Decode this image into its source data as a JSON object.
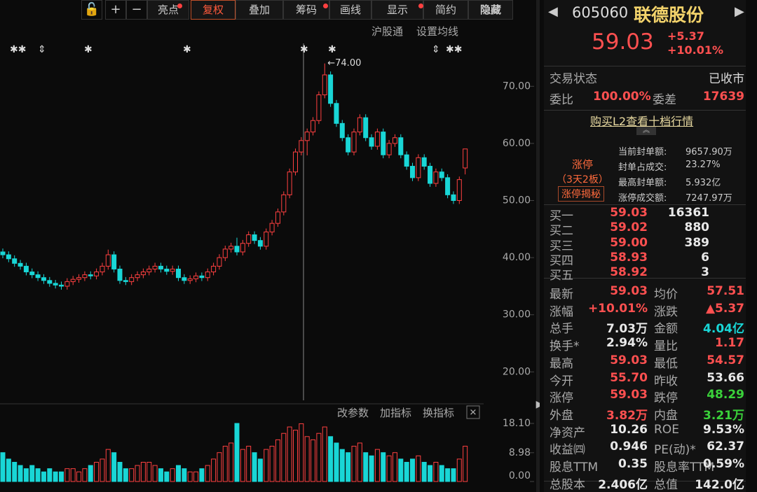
{
  "toolbar": {
    "items": [
      "亮点",
      "复权",
      "叠加",
      "筹码",
      "画线",
      "显示",
      "简约",
      "隐藏"
    ],
    "sub": [
      "沪股通",
      "设置均线"
    ],
    "indicator": [
      "改参数",
      "加指标",
      "换指标"
    ]
  },
  "chart_data": {
    "type": "candlestick",
    "up_color": "#ff4040",
    "down_color": "#19d6d6",
    "peak_label": "←74.00",
    "ylim": [
      16,
      78
    ],
    "yticks": [
      {
        "value": 20,
        "label": "20.00"
      },
      {
        "value": 30,
        "label": "30.00"
      },
      {
        "value": 40,
        "label": "40.00"
      },
      {
        "value": 50,
        "label": "50.00"
      },
      {
        "value": 60,
        "label": "60.00"
      },
      {
        "value": 70,
        "label": "70.00"
      }
    ],
    "ohlc": [
      [
        41,
        41.6,
        39.9,
        40.5
      ],
      [
        40.5,
        41.1,
        39.2,
        39.8
      ],
      [
        39.8,
        40.4,
        38.4,
        39
      ],
      [
        39,
        39.6,
        37.9,
        38.5
      ],
      [
        38.5,
        39.1,
        36.9,
        37.5
      ],
      [
        37.5,
        38.1,
        36.4,
        37
      ],
      [
        37,
        37.6,
        35.9,
        36.5
      ],
      [
        36.5,
        37.1,
        35.4,
        36
      ],
      [
        36,
        36.6,
        34.9,
        35.5
      ],
      [
        35.5,
        36.1,
        34.6,
        35.2
      ],
      [
        35.2,
        35.8,
        34.4,
        35
      ],
      [
        35,
        36.4,
        34.4,
        35.8
      ],
      [
        35.8,
        36.8,
        35.2,
        36.2
      ],
      [
        36.2,
        37.1,
        35.6,
        36.5
      ],
      [
        36.5,
        37.6,
        35.9,
        37
      ],
      [
        37,
        37.6,
        36.2,
        36.8
      ],
      [
        36.8,
        38.1,
        36.2,
        37.5
      ],
      [
        37.5,
        39.1,
        36.9,
        38.5
      ],
      [
        38.5,
        41.4,
        37.9,
        40.5
      ],
      [
        40.5,
        41.1,
        37.4,
        38
      ],
      [
        38,
        38.6,
        35.4,
        36
      ],
      [
        36,
        36.6,
        35.2,
        35.8
      ],
      [
        35.8,
        37.1,
        35.2,
        36.5
      ],
      [
        36.5,
        37.6,
        35.9,
        37
      ],
      [
        37,
        38.1,
        36.4,
        37.5
      ],
      [
        37.5,
        38.6,
        36.9,
        38
      ],
      [
        38,
        39.1,
        37.4,
        38.5
      ],
      [
        38.5,
        39.1,
        37.4,
        38
      ],
      [
        38,
        38.6,
        37,
        37.6
      ],
      [
        37.6,
        38.6,
        37,
        38
      ],
      [
        38,
        38.6,
        35.9,
        36.5
      ],
      [
        36.5,
        37.1,
        35.4,
        36
      ],
      [
        36,
        36.9,
        35.4,
        36.3
      ],
      [
        36.3,
        37.4,
        35.7,
        36.8
      ],
      [
        36.8,
        37.4,
        35.9,
        36.5
      ],
      [
        36.5,
        38.1,
        35.9,
        37.5
      ],
      [
        37.5,
        39.1,
        36.9,
        38.5
      ],
      [
        38.5,
        40.6,
        37.9,
        40
      ],
      [
        40,
        42.1,
        39.4,
        41.5
      ],
      [
        41.5,
        42.6,
        40.9,
        42
      ],
      [
        42,
        43.5,
        40.4,
        41
      ],
      [
        41,
        43.1,
        40.4,
        42.5
      ],
      [
        42.5,
        44.6,
        41.9,
        44
      ],
      [
        44,
        44.6,
        42.4,
        43
      ],
      [
        43,
        43.6,
        41.4,
        42
      ],
      [
        42,
        45.1,
        41.4,
        44.5
      ],
      [
        44.5,
        46.6,
        43.9,
        46
      ],
      [
        46,
        48.6,
        45.4,
        48
      ],
      [
        48,
        51.6,
        47.4,
        51
      ],
      [
        51,
        55.6,
        50.4,
        55
      ],
      [
        55,
        59.1,
        54.4,
        58.5
      ],
      [
        58.5,
        61.1,
        57.9,
        60.5
      ],
      [
        60.5,
        62.6,
        57.9,
        62
      ],
      [
        62,
        64.6,
        61.4,
        64
      ],
      [
        64,
        69.1,
        63.4,
        68.5
      ],
      [
        68.5,
        74,
        67.9,
        72
      ],
      [
        72,
        72.6,
        66.4,
        67
      ],
      [
        67,
        67.6,
        62.9,
        63.5
      ],
      [
        63.5,
        64.1,
        60.4,
        61
      ],
      [
        61,
        61.6,
        57.9,
        58.5
      ],
      [
        58.5,
        62.6,
        57.9,
        62
      ],
      [
        62,
        65.1,
        61.4,
        64.5
      ],
      [
        64.5,
        65.1,
        60.4,
        61
      ],
      [
        61,
        61.6,
        58.9,
        59.5
      ],
      [
        59.5,
        62.6,
        58.9,
        62
      ],
      [
        62,
        62.6,
        57.4,
        58
      ],
      [
        58,
        60.6,
        57.4,
        60
      ],
      [
        60,
        61.6,
        59.4,
        61
      ],
      [
        61,
        61.6,
        57.4,
        58
      ],
      [
        58,
        58.6,
        55.4,
        56
      ],
      [
        56,
        56.6,
        53.4,
        54
      ],
      [
        54,
        58.1,
        53.4,
        57.5
      ],
      [
        57.5,
        58.1,
        55.4,
        56
      ],
      [
        56,
        56.6,
        52.4,
        53
      ],
      [
        53,
        55.6,
        52.4,
        55
      ],
      [
        55,
        55.6,
        53.4,
        54
      ],
      [
        54,
        54.6,
        50.4,
        51
      ],
      [
        51,
        51.6,
        49.4,
        50
      ],
      [
        50,
        54.2,
        49.4,
        53.66
      ],
      [
        55.7,
        59.03,
        54.57,
        59.03
      ]
    ],
    "volume": {
      "ylim": [
        0,
        18.1
      ],
      "yticks": [
        {
          "value": 0,
          "label": "0.00"
        },
        8.98,
        {
          "value": 18.1,
          "label": "18.10"
        }
      ],
      "values": [
        9,
        7,
        6,
        5,
        4,
        5,
        4,
        3,
        4,
        3,
        3,
        4,
        4,
        3,
        4,
        5,
        6,
        7,
        10,
        9,
        6,
        4,
        4,
        5,
        6,
        6,
        5,
        4,
        3,
        4,
        5,
        4,
        3,
        3,
        4,
        5,
        7,
        9,
        11,
        12,
        18.1,
        10,
        11,
        9,
        7,
        10,
        11,
        13,
        15,
        17,
        16,
        18,
        14,
        13,
        15,
        17,
        14,
        12,
        10,
        9,
        11,
        12,
        9,
        8,
        10,
        9,
        8,
        9,
        7,
        6,
        7,
        8,
        6,
        5,
        6,
        5,
        4,
        4,
        7,
        11
      ]
    }
  },
  "quote": {
    "code": "605060",
    "name": "联德股份",
    "price": "59.03",
    "change": "+5.37",
    "pct": "+10.01%",
    "status_label": "交易状态",
    "status": "已收市",
    "ratio": [
      "委比",
      "100.00%",
      "委差",
      "17639"
    ],
    "l2": "购买L2查看十档行情",
    "limit": {
      "tag": "涨停",
      "boards": "（3天2板）",
      "button": "涨停揭秘",
      "rows": [
        [
          "当前封单额:",
          "9657.90万"
        ],
        [
          "封单占成交:",
          "23.27%"
        ],
        [
          "最高封单额:",
          "5.932亿"
        ],
        [
          "涨停成交额:",
          "7247.97万"
        ]
      ]
    },
    "bids": [
      [
        "买一",
        "59.03",
        "16361"
      ],
      [
        "买二",
        "59.02",
        "880"
      ],
      [
        "买三",
        "59.00",
        "389"
      ],
      [
        "买四",
        "58.93",
        "6"
      ],
      [
        "买五",
        "58.92",
        "3"
      ]
    ],
    "stats": [
      [
        {
          "t": "最新"
        },
        {
          "t": "59.03",
          "c": "#ff5050"
        },
        {
          "t": "均价"
        },
        {
          "t": "57.51",
          "c": "#ff5050"
        }
      ],
      [
        {
          "t": "涨幅"
        },
        {
          "t": "+10.01%",
          "c": "#ff5050"
        },
        {
          "t": "涨跌"
        },
        {
          "t": "▲5.37",
          "c": "#ff5050"
        }
      ],
      [
        {
          "t": "总手"
        },
        {
          "t": "7.03万",
          "c": "#e8e8e8"
        },
        {
          "t": "金额"
        },
        {
          "t": "4.04亿",
          "c": "#19d6d6"
        }
      ],
      [
        {
          "t": "换手*"
        },
        {
          "t": "2.94%",
          "c": "#e8e8e8"
        },
        {
          "t": "量比"
        },
        {
          "t": "1.17",
          "c": "#ff5050"
        }
      ],
      [
        {
          "t": "最高"
        },
        {
          "t": "59.03",
          "c": "#ff5050"
        },
        {
          "t": "最低"
        },
        {
          "t": "54.57",
          "c": "#ff5050"
        }
      ],
      [
        {
          "t": "今开"
        },
        {
          "t": "55.70",
          "c": "#ff5050"
        },
        {
          "t": "昨收"
        },
        {
          "t": "53.66",
          "c": "#e8e8e8"
        }
      ],
      [
        {
          "t": "涨停"
        },
        {
          "t": "59.03",
          "c": "#ff5050"
        },
        {
          "t": "跌停"
        },
        {
          "t": "48.29",
          "c": "#3ad13a"
        }
      ],
      [
        {
          "t": "外盘"
        },
        {
          "t": "3.82万",
          "c": "#ff5050"
        },
        {
          "t": "内盘"
        },
        {
          "t": "3.21万",
          "c": "#3ad13a"
        }
      ],
      [
        {
          "t": "净资产"
        },
        {
          "t": "10.26",
          "c": "#e8e8e8"
        },
        {
          "t": "ROE"
        },
        {
          "t": "9.53%",
          "c": "#e8e8e8"
        }
      ],
      [
        {
          "t": "收益㈣"
        },
        {
          "t": "0.946",
          "c": "#e8e8e8"
        },
        {
          "t": "PE(动)*"
        },
        {
          "t": "62.37",
          "c": "#e8e8e8"
        }
      ],
      [
        {
          "t": "股息TTM"
        },
        {
          "t": "0.35",
          "c": "#e8e8e8"
        },
        {
          "t": "股息率TTM"
        },
        {
          "t": "0.59%",
          "c": "#e8e8e8"
        }
      ],
      [
        {
          "t": "总股本"
        },
        {
          "t": "2.406亿",
          "c": "#e8e8e8"
        },
        {
          "t": "总值"
        },
        {
          "t": "142.0亿",
          "c": "#e8e8e8"
        }
      ]
    ]
  }
}
